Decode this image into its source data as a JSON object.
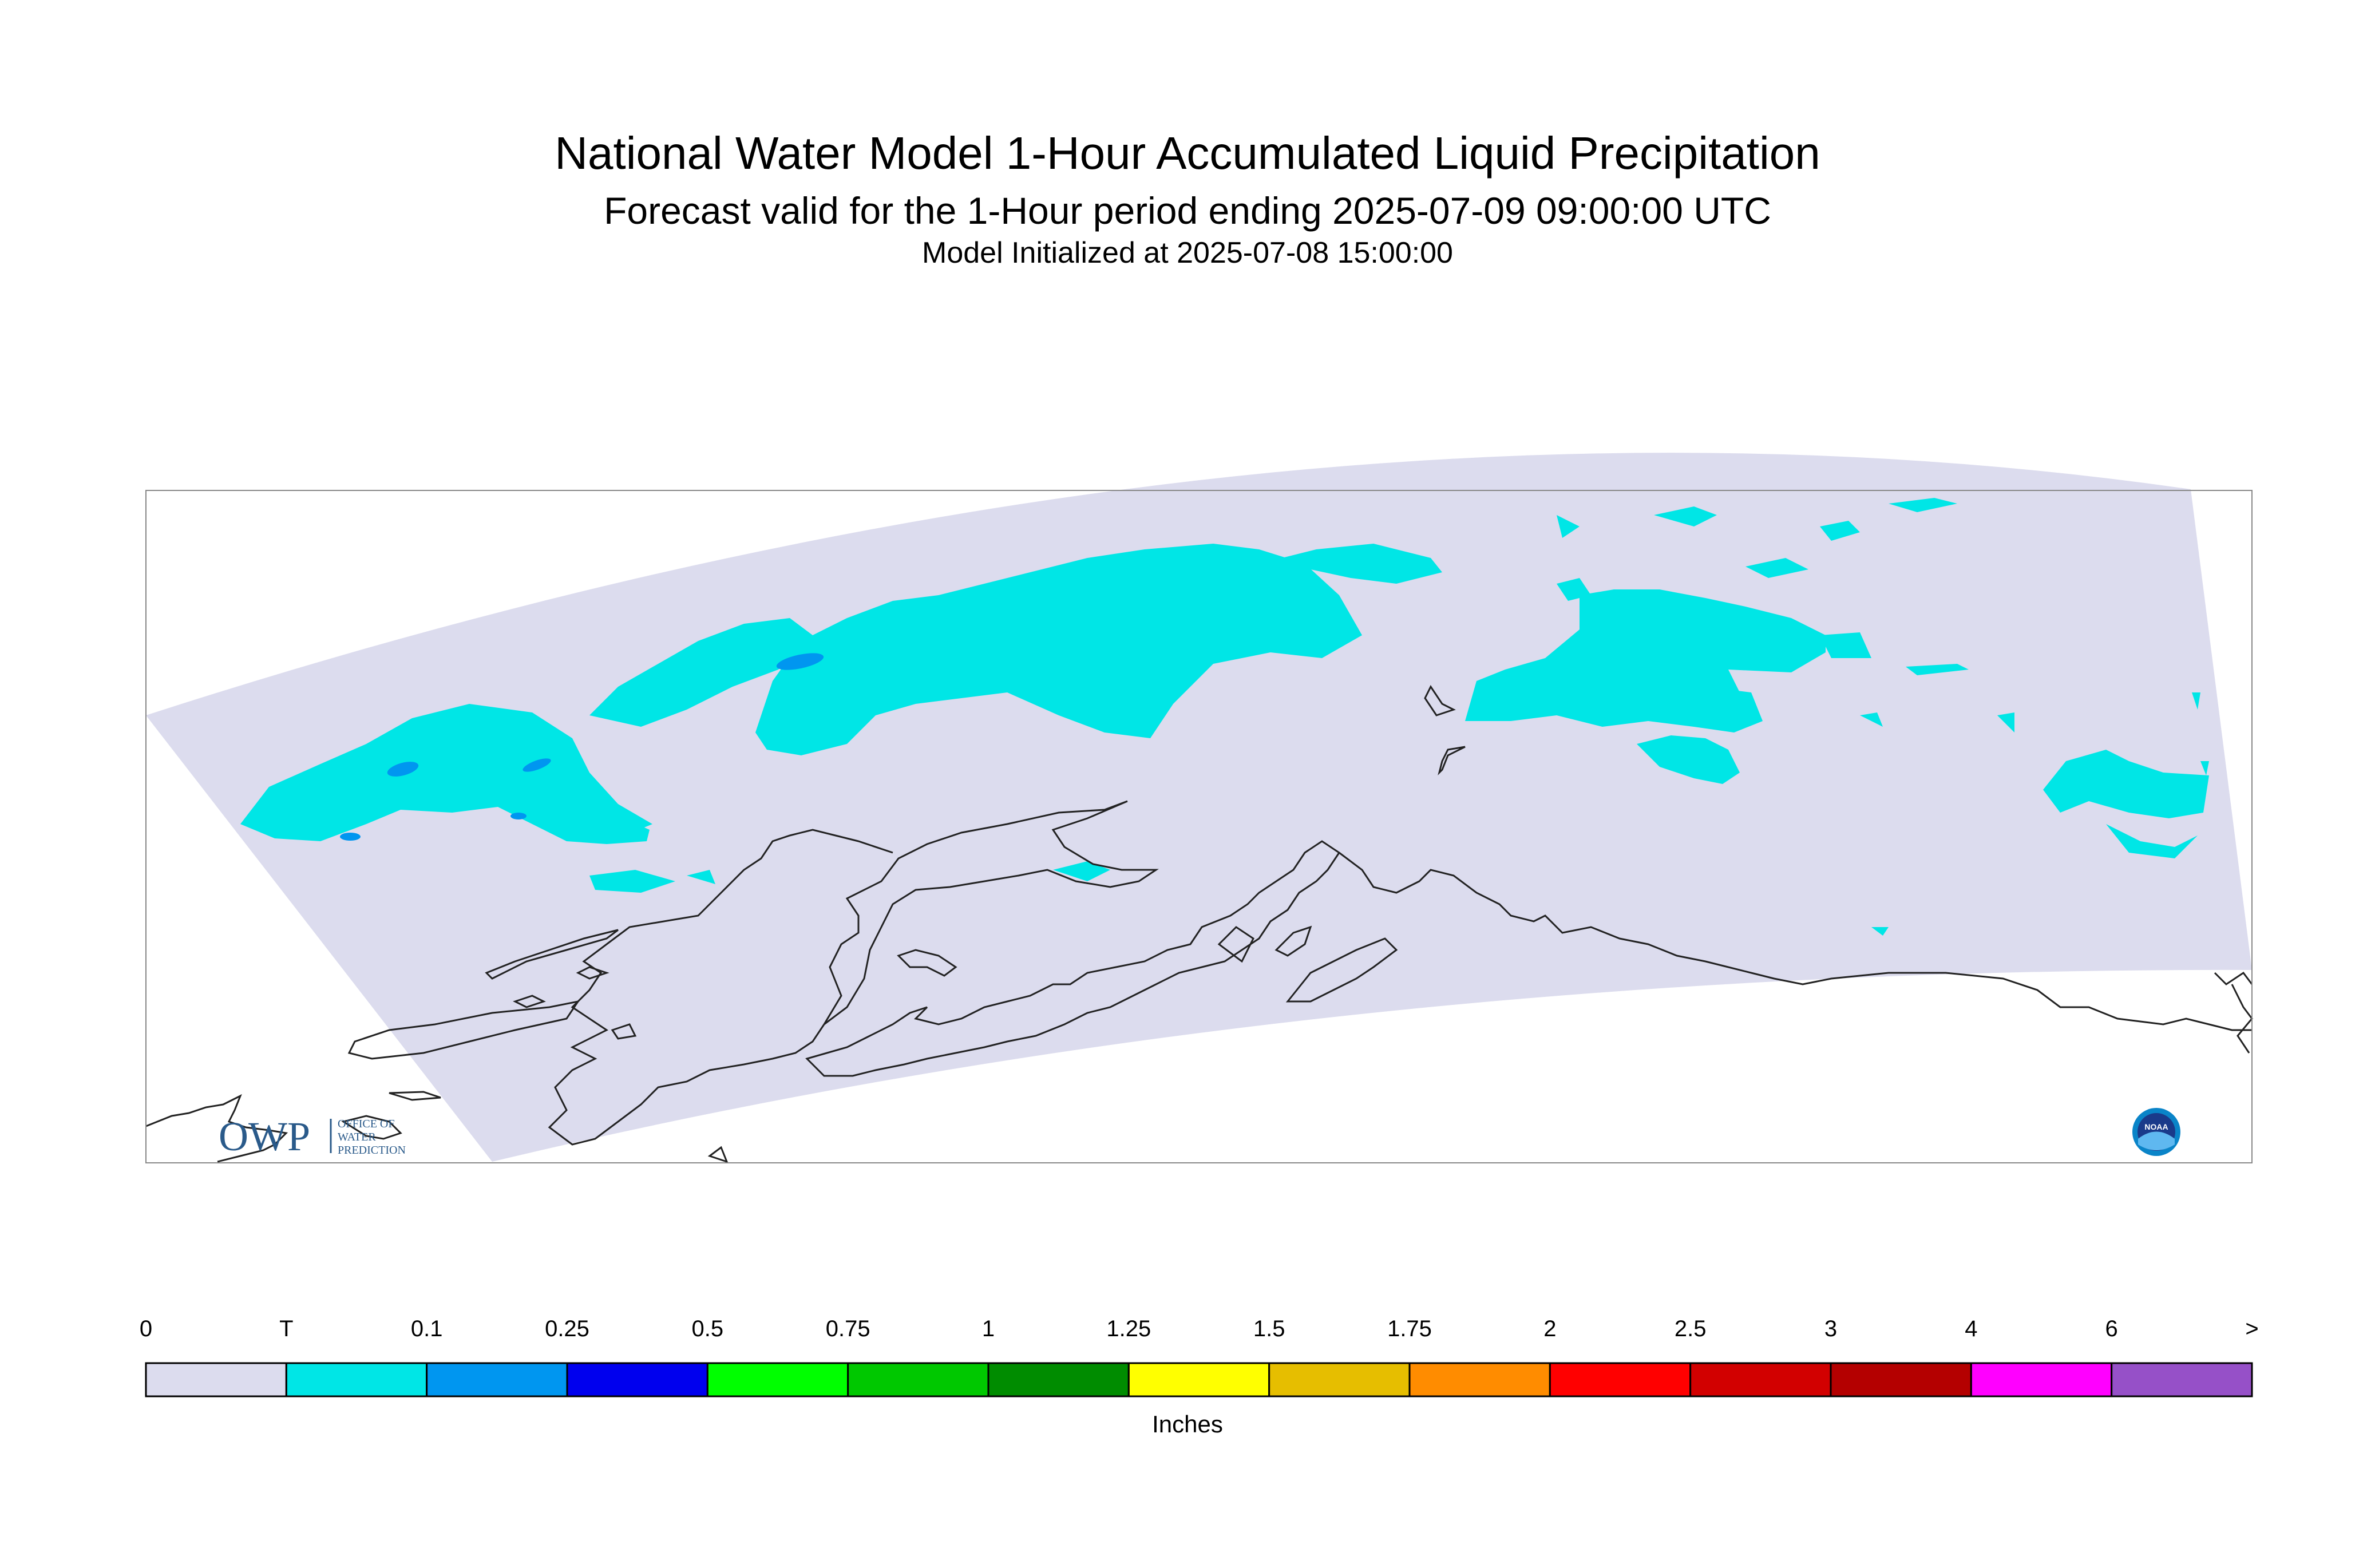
{
  "titles": {
    "main": "National Water Model 1-Hour Accumulated Liquid Precipitation",
    "forecast": "Forecast valid for the 1-Hour period ending 2025-07-09 09:00:00 UTC",
    "init": "Model Initialized at 2025-07-08 15:00:00"
  },
  "logos": {
    "owp_mark": "OWP",
    "owp_text": [
      "OFFICE OF",
      "WATER",
      "PREDICTION"
    ],
    "noaa_text": "NOAA"
  },
  "legend": {
    "unit_label": "Inches",
    "tick_labels": [
      "0",
      "T",
      "0.1",
      "0.25",
      "0.5",
      "0.75",
      "1",
      "1.25",
      "1.5",
      "1.75",
      "2",
      "2.5",
      "3",
      "4",
      "6",
      ">"
    ],
    "colors": [
      "#dcdcee",
      "#00e6e6",
      "#0096f0",
      "#0000ee",
      "#00ff00",
      "#00c800",
      "#008c00",
      "#ffff00",
      "#e6be00",
      "#ff8c00",
      "#ff0000",
      "#d20000",
      "#b40000",
      "#ff00ff",
      "#9650c8"
    ]
  },
  "map": {
    "region": "Alaska",
    "domain_fill": "#dcdcee",
    "precip_trace_color": "#00e6e6",
    "precip_light_color": "#0096f0",
    "coastline_color": "#222222"
  }
}
